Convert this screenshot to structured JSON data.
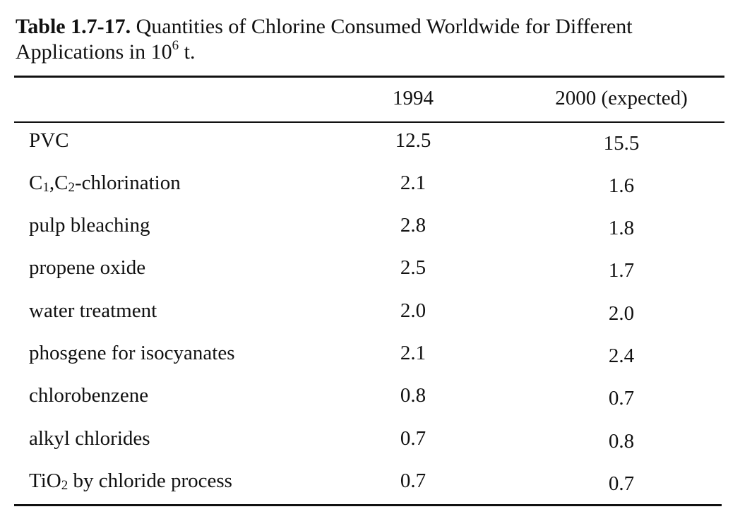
{
  "table": {
    "caption_label": "Table 1.7-17.",
    "caption_line1": "Quantities of Chlorine Consumed Worldwide for Different",
    "caption_line2_pre": "Applications in 10",
    "caption_sup": "6",
    "caption_line2_post": " t.",
    "columns": [
      "1994",
      "2000 (expected)"
    ],
    "rows": [
      {
        "category": "PVC",
        "v1994": "12.5",
        "v2000": "15.5"
      },
      {
        "cat_a": "C",
        "cat_a_sub": "1",
        "cat_b": ",C",
        "cat_b_sub": "2",
        "cat_c": "-chlorination",
        "v1994": "2.1",
        "v2000": "1.6"
      },
      {
        "category": "pulp bleaching",
        "v1994": "2.8",
        "v2000": "1.8"
      },
      {
        "category": "propene oxide",
        "v1994": "2.5",
        "v2000": "1.7"
      },
      {
        "category": "water treatment",
        "v1994": "2.0",
        "v2000": "2.0"
      },
      {
        "category": "phosgene for isocyanates",
        "v1994": "2.1",
        "v2000": "2.4"
      },
      {
        "category": "chlorobenzene",
        "v1994": "0.8",
        "v2000": "0.7"
      },
      {
        "category": "alkyl chlorides",
        "v1994": "0.7",
        "v2000": "0.8"
      },
      {
        "cat_a": "TiO",
        "cat_a_sub": "2",
        "cat_b": " by chloride process",
        "v1994": "0.7",
        "v2000": "0.7"
      }
    ]
  }
}
